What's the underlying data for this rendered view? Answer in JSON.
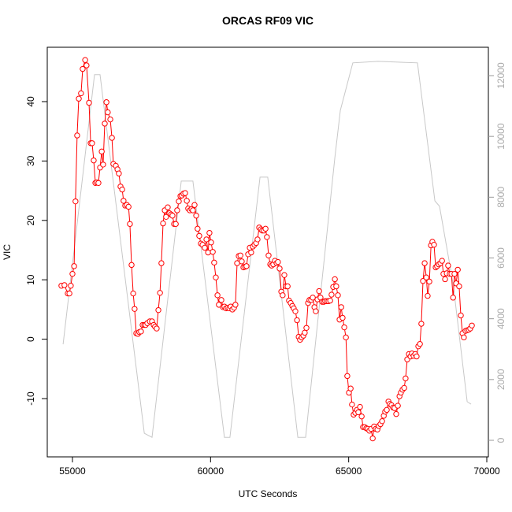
{
  "chart_data": {
    "type": "line",
    "title": "ORCAS RF09 VIC",
    "x_label": "UTC Seconds",
    "y_label": "VIC",
    "xlim": [
      54088,
      70057
    ],
    "xticks": [
      55000,
      60000,
      65000,
      70000
    ],
    "ylim": [
      -19.81,
      49.15
    ],
    "yticks": [
      -10,
      0,
      10,
      20,
      30,
      40
    ],
    "y2lim": [
      -544,
      12933
    ],
    "y2ticks": [
      0,
      2000,
      4000,
      6000,
      8000,
      10000,
      12000
    ],
    "series": [
      {
        "color": "#ff0000",
        "marker": "circle",
        "x": [
          54600,
          54710,
          54830,
          54890,
          54940,
          55000,
          55060,
          55110,
          55170,
          55230,
          55310,
          55370,
          55460,
          55510,
          55600,
          55660,
          55710,
          55770,
          55830,
          55880,
          55940,
          56000,
          56060,
          56110,
          56170,
          56230,
          56280,
          56370,
          56430,
          56480,
          56570,
          56630,
          56680,
          56740,
          56800,
          56850,
          56910,
          56970,
          57030,
          57080,
          57140,
          57200,
          57250,
          57310,
          57370,
          57420,
          57480,
          57540,
          57600,
          57650,
          57710,
          57800,
          57880,
          57940,
          57990,
          58050,
          58110,
          58170,
          58220,
          58280,
          58340,
          58390,
          58450,
          58510,
          58570,
          58620,
          58680,
          58740,
          58790,
          58850,
          58910,
          58960,
          59020,
          59080,
          59140,
          59190,
          59250,
          59310,
          59360,
          59420,
          59480,
          59530,
          59590,
          59650,
          59710,
          59790,
          59850,
          59910,
          59960,
          60020,
          60080,
          60130,
          60190,
          60250,
          60300,
          60390,
          60450,
          60500,
          60560,
          60620,
          60680,
          60730,
          60790,
          60850,
          60900,
          60960,
          61020,
          61080,
          61130,
          61190,
          61250,
          61300,
          61360,
          61420,
          61470,
          61530,
          61590,
          61650,
          61700,
          61760,
          61820,
          61870,
          61930,
          61990,
          62040,
          62100,
          62160,
          62210,
          62270,
          62330,
          62390,
          62440,
          62500,
          62560,
          62610,
          62670,
          62730,
          62790,
          62840,
          62900,
          62960,
          63010,
          63070,
          63130,
          63190,
          63240,
          63300,
          63360,
          63410,
          63470,
          63530,
          63580,
          63640,
          63700,
          63760,
          63810,
          63870,
          63930,
          63980,
          64040,
          64100,
          64150,
          64210,
          64270,
          64330,
          64380,
          64440,
          64500,
          64550,
          64610,
          64670,
          64730,
          64780,
          64840,
          64900,
          64950,
          65010,
          65070,
          65120,
          65180,
          65240,
          65300,
          65350,
          65410,
          65470,
          65520,
          65580,
          65640,
          65690,
          65750,
          65810,
          65870,
          65920,
          65980,
          66040,
          66090,
          66150,
          66210,
          66270,
          66320,
          66380,
          66440,
          66490,
          66550,
          66610,
          66660,
          66720,
          66780,
          66840,
          66890,
          66950,
          67010,
          67060,
          67120,
          67180,
          67240,
          67290,
          67350,
          67410,
          67460,
          67520,
          67580,
          67630,
          67690,
          67750,
          67810,
          67860,
          67920,
          67980,
          68030,
          68090,
          68150,
          68200,
          68260,
          68320,
          68380,
          68430,
          68490,
          68550,
          68600,
          68660,
          68720,
          68780,
          68830,
          68890,
          68950,
          69000,
          69060,
          69120,
          69170,
          69230,
          69290,
          69350,
          69400,
          69460
        ],
        "values": [
          9,
          9.1,
          7.7,
          7.7,
          9,
          11,
          12.3,
          23.2,
          34.3,
          40.5,
          41.4,
          45.5,
          47,
          46.1,
          39.8,
          33,
          33,
          30.1,
          26.3,
          26.4,
          26.3,
          28.9,
          31.6,
          29.4,
          36.3,
          39.9,
          38.2,
          37,
          33.9,
          29.5,
          29.2,
          28.6,
          27.9,
          25.7,
          25.2,
          23.3,
          22.5,
          22.6,
          22.3,
          19.4,
          12.5,
          7.7,
          5.1,
          1,
          0.9,
          1.2,
          1.3,
          2.4,
          2.4,
          2.4,
          2.7,
          3,
          3,
          2.4,
          2.1,
          1.8,
          4.9,
          7.8,
          12.8,
          19.5,
          21.7,
          20.6,
          22.2,
          21.2,
          21,
          20.8,
          19.4,
          19.4,
          21.7,
          23.2,
          24.1,
          24.2,
          24.5,
          24.6,
          23.3,
          22,
          21.7,
          21.9,
          21.7,
          22.6,
          20.8,
          18.6,
          17.4,
          16.1,
          15.9,
          15.4,
          16.8,
          14.6,
          17.9,
          16.3,
          14.7,
          12.9,
          10.4,
          7.4,
          5.8,
          6.6,
          5.4,
          5.5,
          5.2,
          5.3,
          5.2,
          5.5,
          5,
          5.3,
          5.8,
          12.8,
          14,
          14.1,
          13.1,
          12.1,
          12.2,
          12.3,
          14.3,
          15.4,
          14.6,
          15.6,
          15.9,
          16.2,
          16.8,
          18.8,
          18.5,
          18.3,
          18.3,
          18.6,
          17.2,
          14.1,
          12.6,
          12.4,
          12.6,
          13.2,
          12.8,
          13,
          11.9,
          8,
          7.4,
          10.8,
          8.9,
          8.9,
          6.5,
          6.1,
          5.6,
          5.2,
          4.7,
          3.2,
          0.4,
          -0.1,
          0.3,
          0.6,
          1.1,
          1.9,
          6.1,
          6.6,
          6.6,
          7,
          5.4,
          4.7,
          6.7,
          8.1,
          7,
          6.3,
          6.3,
          6.4,
          6.4,
          6.4,
          6.5,
          7.5,
          8.8,
          10.1,
          8.9,
          7.4,
          3.3,
          5.4,
          3.6,
          2,
          0.3,
          -6.2,
          -9,
          -8.3,
          -11,
          -12.7,
          -12.4,
          -11.9,
          -12.3,
          -11.4,
          -13,
          -14.8,
          -14.8,
          -15,
          -15.1,
          -15.4,
          -15.1,
          -16.7,
          -14.7,
          -15.1,
          -15.2,
          -14.6,
          -14.3,
          -13.8,
          -12.9,
          -12.2,
          -11.9,
          -10.5,
          -10.9,
          -11.1,
          -11.5,
          -11.6,
          -12.6,
          -11.2,
          -9.6,
          -9,
          -8.5,
          -8.2,
          -6.6,
          -3.4,
          -2.5,
          -2.9,
          -2.4,
          -2.8,
          -2.5,
          -2.9,
          -1.2,
          -0.8,
          2.6,
          9.8,
          12.8,
          10.4,
          7.3,
          9.7,
          15.8,
          16.4,
          15.9,
          12.1,
          12.3,
          12.6,
          12.8,
          13.2,
          11,
          10.1,
          11.1,
          12.4,
          11,
          11,
          7,
          11,
          9.4,
          11.7,
          8.9,
          4,
          1,
          0.3,
          1.4,
          1.5,
          1.6,
          1.8,
          2.3
        ]
      },
      {
        "color": "#c8c8c8",
        "axis": "y2",
        "x": [
          54660,
          55800,
          56000,
          57600,
          57880,
          58940,
          59360,
          60500,
          60700,
          61790,
          62070,
          63160,
          63440,
          64500,
          64700,
          65150,
          66070,
          67490,
          68120,
          68290,
          68780,
          69290,
          69430
        ],
        "values": [
          3160,
          12030,
          12030,
          230,
          100,
          8530,
          8530,
          100,
          100,
          8660,
          8660,
          100,
          100,
          9300,
          10860,
          12420,
          12470,
          12420,
          7880,
          7700,
          5160,
          1270,
          1190
        ]
      }
    ]
  }
}
